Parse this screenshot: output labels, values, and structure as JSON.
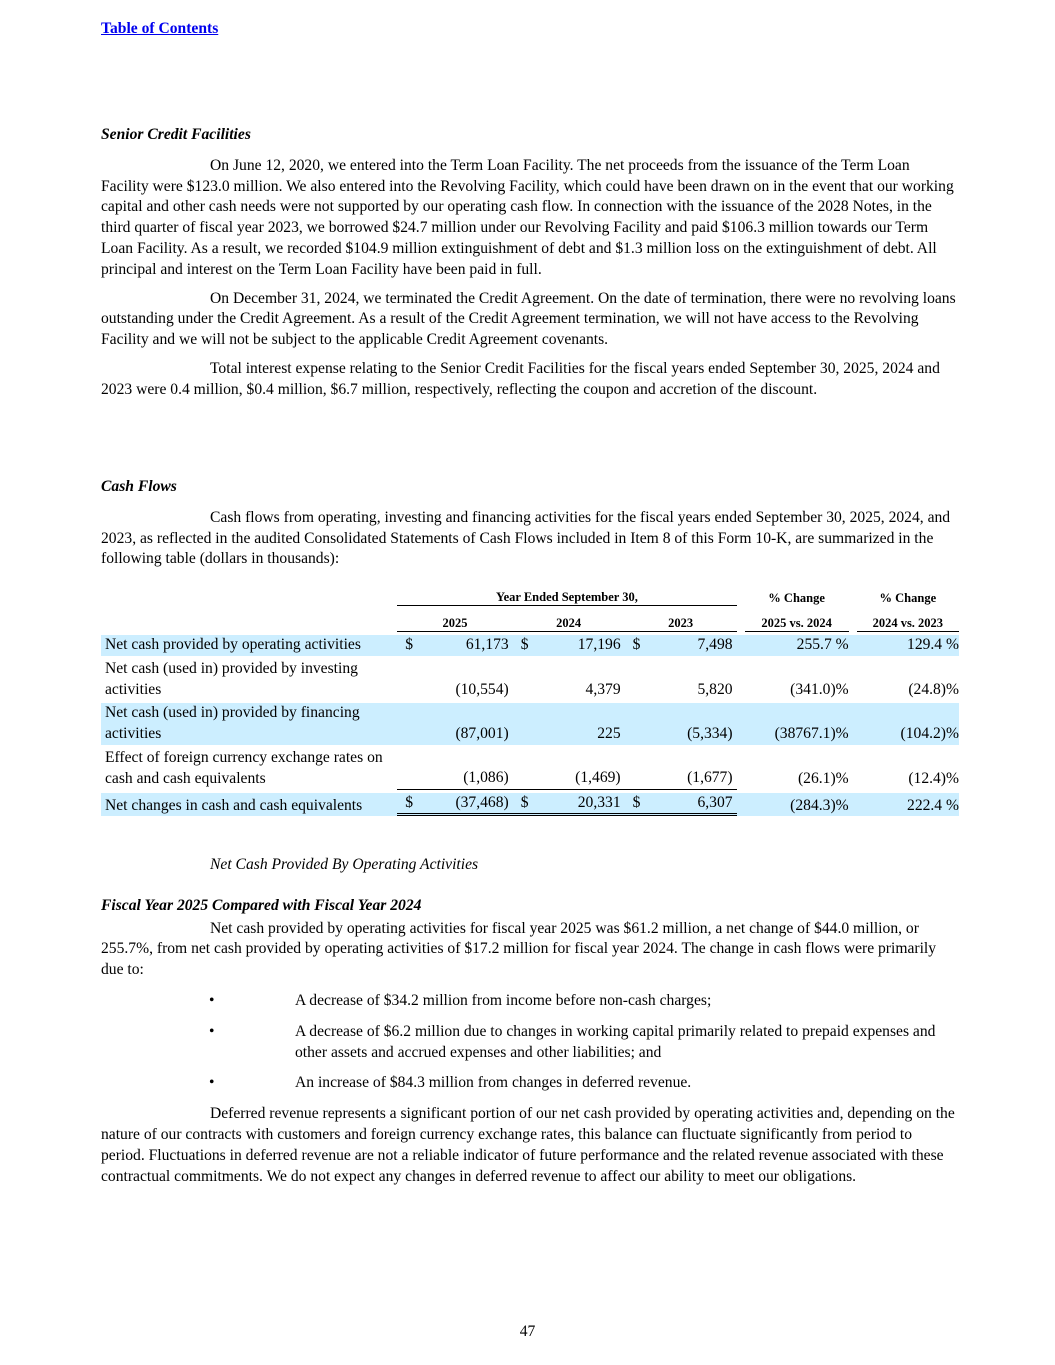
{
  "toc_link": "Table of Contents",
  "section1": {
    "heading": "Senior Credit Facilities",
    "paragraphs": [
      "On June 12, 2020, we entered into the Term Loan Facility. The net proceeds from the issuance of the Term Loan Facility were $123.0 million. We also entered into the Revolving Facility, which could have been drawn on in the event that our working capital and other cash needs were not supported by our operating cash flow. In connection with the issuance of the 2028 Notes, in the third quarter of fiscal year 2023, we borrowed $24.7 million under our Revolving Facility and paid $106.3 million towards our Term Loan Facility. As a result, we recorded $104.9 million extinguishment of debt and $1.3 million loss on the extinguishment of debt. All principal and interest on the Term Loan Facility have been paid in full.",
      "On December 31, 2024, we terminated the Credit Agreement. On the date of termination, there were no revolving loans outstanding under the Credit Agreement. As a result of the Credit Agreement termination, we will not have access to the Revolving Facility and we will not be subject to the applicable Credit Agreement covenants.",
      "Total interest expense relating to the Senior Credit Facilities for the fiscal years ended September 30, 2025, 2024 and 2023 were 0.4 million, $0.4 million, $6.7 million, respectively, reflecting the coupon and accretion of the discount."
    ]
  },
  "section2": {
    "heading": "Cash Flows",
    "paragraph": "Cash flows from operating, investing and financing activities for the fiscal years ended September 30, 2025, 2024, and 2023, as reflected in the audited Consolidated Statements of Cash Flows included in Item 8 of this Form 10-K, are summarized in the following table (dollars in thousands):"
  },
  "table": {
    "group_header": "Year Ended September 30,",
    "years": [
      "2025",
      "2024",
      "2023"
    ],
    "pct_headers": [
      [
        "% Change",
        "2025 vs. 2024"
      ],
      [
        "% Change",
        "2024 vs. 2023"
      ]
    ],
    "rows": [
      {
        "label": "Net cash provided by operating activities",
        "dollar": true,
        "values": [
          "61,173",
          "17,196",
          "7,498"
        ],
        "pcts": [
          "255.7 %",
          "129.4 %"
        ]
      },
      {
        "label": "Net cash (used in) provided by investing activities",
        "dollar": false,
        "values": [
          "(10,554)",
          "4,379",
          "5,820"
        ],
        "pcts": [
          "(341.0)%",
          "(24.8)%"
        ]
      },
      {
        "label": "Net cash (used in) provided by financing activities",
        "dollar": false,
        "values": [
          "(87,001)",
          "225",
          "(5,334)"
        ],
        "pcts": [
          "(38767.1)%",
          "(104.2)%"
        ]
      },
      {
        "label": "Effect of foreign currency exchange rates on cash and cash equivalents",
        "dollar": false,
        "values": [
          "(1,086)",
          "(1,469)",
          "(1,677)"
        ],
        "pcts": [
          "(26.1)%",
          "(12.4)%"
        ]
      },
      {
        "label": "Net changes in cash and cash equivalents",
        "dollar": true,
        "values": [
          "(37,468)",
          "20,331",
          "6,307"
        ],
        "pcts": [
          "(284.3)%",
          "222.4 %"
        ]
      }
    ],
    "currency_symbol": "$",
    "highlight_color": "#cceeff"
  },
  "section3": {
    "subheading": "Net Cash Provided By Operating Activities",
    "heading": "Fiscal Year 2025 Compared with Fiscal Year 2024",
    "paragraph": "Net cash provided by operating activities for fiscal year 2025 was $61.2 million, a net change of $44.0 million, or 255.7%, from net cash provided by operating activities of $17.2 million for fiscal year 2024. The change in cash flows were primarily due to:",
    "bullet_char": "•",
    "bullets": [
      "A decrease of $34.2 million from income before non-cash charges;",
      "A decrease of $6.2 million due to changes in working capital primarily related to prepaid expenses and other assets and accrued expenses and other liabilities; and",
      "An increase of $84.3 million from changes in deferred revenue."
    ],
    "closing": "Deferred revenue represents a significant portion of our net cash provided by operating activities and, depending on the nature of our contracts with customers and foreign currency exchange rates, this balance can fluctuate significantly from period to period. Fluctuations in deferred revenue are not a reliable indicator of future performance and the related revenue associated with these contractual commitments. We do not expect any changes in deferred revenue to affect our ability to meet our obligations."
  },
  "page_number": "47"
}
